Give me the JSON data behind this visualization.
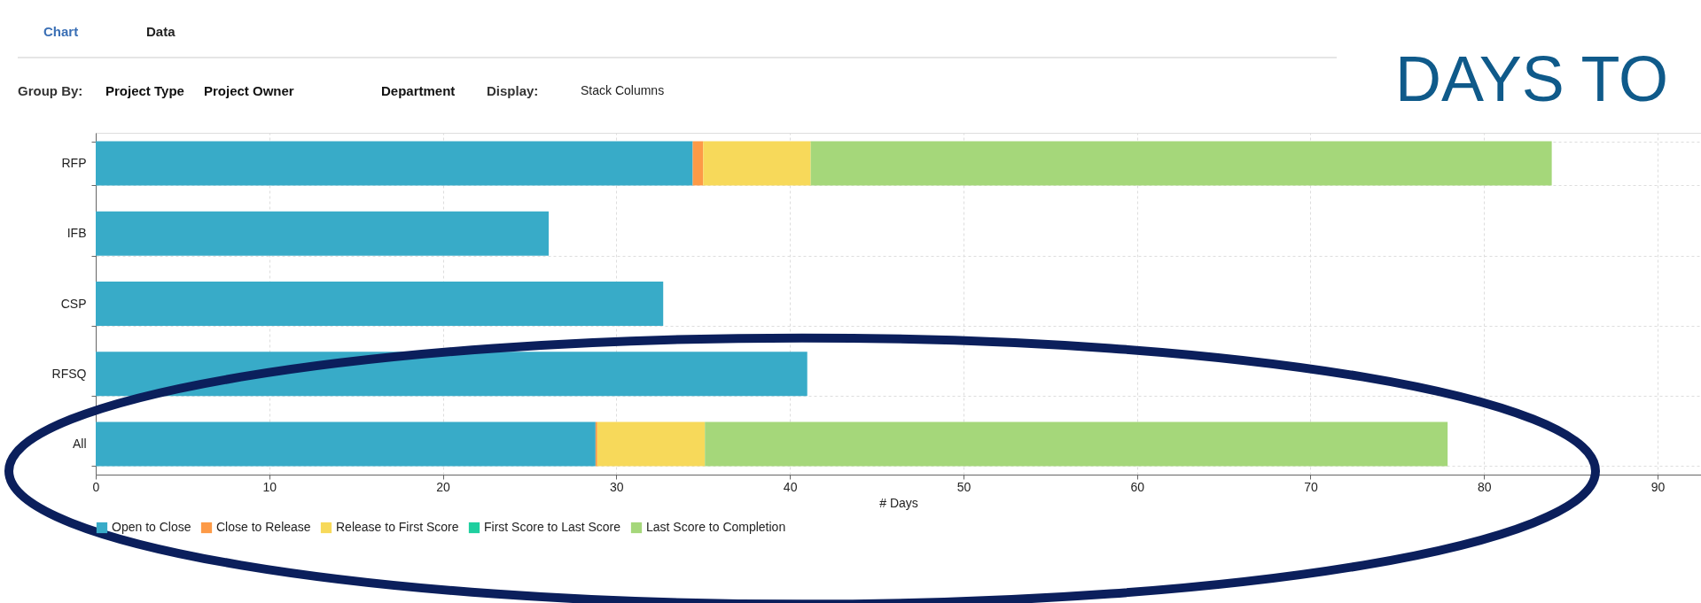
{
  "chart_data": {
    "type": "bar",
    "orientation": "horizontal",
    "stacked": true,
    "xlabel": "# Days",
    "categories": [
      "RFP",
      "IFB",
      "CSP",
      "RFSQ",
      "All"
    ],
    "series": [
      {
        "name": "Open to Close",
        "color": "#38abc8",
        "values": [
          34.4,
          26.1,
          32.7,
          41.0,
          28.8
        ]
      },
      {
        "name": "Close to Release",
        "color": "#fd9a47",
        "values": [
          0.6,
          null,
          null,
          null,
          0.1
        ]
      },
      {
        "name": "Release to First Score",
        "color": "#f7d95a",
        "values": [
          6.2,
          null,
          null,
          null,
          6.2
        ]
      },
      {
        "name": "First Score to Last Score",
        "color": "#1fcf9f",
        "values": [
          null,
          null,
          null,
          null,
          null
        ]
      },
      {
        "name": "Last Score to Completion",
        "color": "#a5d77a",
        "values": [
          42.7,
          null,
          null,
          null,
          42.8
        ]
      }
    ],
    "xlim": [
      0,
      92.5
    ],
    "xticks": [
      0,
      10,
      20,
      30,
      40,
      50,
      60,
      70,
      80,
      90
    ],
    "grid": true,
    "legend": "bottom",
    "annotations": [
      "Chart",
      "Data",
      "Group By:",
      "Project Type",
      "Project Owner",
      "Department",
      "Display:",
      "Stack Columns",
      "DAYS TO"
    ]
  }
}
